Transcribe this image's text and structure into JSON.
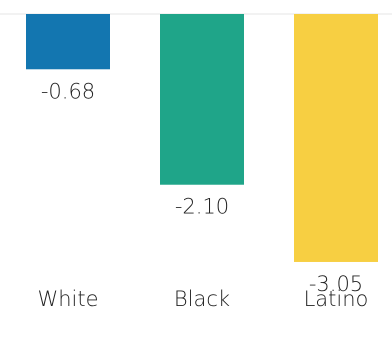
{
  "chart_data": {
    "type": "bar",
    "title": "",
    "xlabel": "",
    "ylabel": "",
    "categories": [
      "White",
      "Black",
      "Latino"
    ],
    "values": [
      -0.68,
      -2.1,
      -3.05
    ],
    "value_labels": [
      "-0.68",
      "-2.10",
      "-3.05"
    ],
    "colors": [
      "#1376b0",
      "#1fa589",
      "#f7cf42"
    ],
    "grid": false,
    "legend": "none"
  }
}
